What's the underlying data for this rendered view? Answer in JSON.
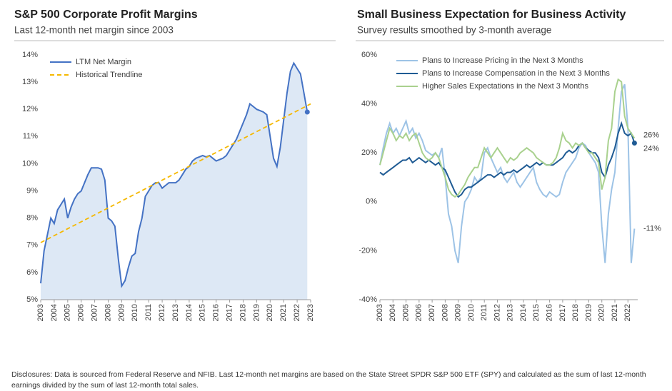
{
  "chart_data": [
    {
      "type": "line",
      "title": "S&P 500 Corporate Profit Margins",
      "subtitle": "Last 12-month net margin since 2003",
      "xlim": [
        2003,
        2023
      ],
      "xticks": [
        2003,
        2004,
        2005,
        2006,
        2007,
        2008,
        2009,
        2010,
        2011,
        2012,
        2013,
        2014,
        2015,
        2016,
        2017,
        2018,
        2019,
        2020,
        2021,
        2022,
        2023
      ],
      "ylim": [
        5,
        14
      ],
      "yticks": [
        {
          "value": 5,
          "label": "5%"
        },
        {
          "value": 6,
          "label": "6%"
        },
        {
          "value": 7,
          "label": "7%"
        },
        {
          "value": 8,
          "label": "8%"
        },
        {
          "value": 9,
          "label": "9%"
        },
        {
          "value": 10,
          "label": "10%"
        },
        {
          "value": 11,
          "label": "11%"
        },
        {
          "value": 12,
          "label": "12%"
        },
        {
          "value": 13,
          "label": "13%"
        },
        {
          "value": 14,
          "label": "14%"
        }
      ],
      "grid": false,
      "legend": "upper left",
      "series": [
        {
          "name": "LTM Net Margin",
          "color": "#4472c4",
          "area_color": "#dde8f5",
          "end_dot": true,
          "x": [
            2003,
            2003.25,
            2003.5,
            2003.75,
            2004,
            2004.25,
            2004.5,
            2004.75,
            2005,
            2005.25,
            2005.5,
            2005.75,
            2006,
            2006.25,
            2006.5,
            2006.75,
            2007,
            2007.25,
            2007.5,
            2007.75,
            2008,
            2008.25,
            2008.5,
            2008.75,
            2009,
            2009.25,
            2009.5,
            2009.75,
            2010,
            2010.25,
            2010.5,
            2010.75,
            2011,
            2011.25,
            2011.5,
            2011.75,
            2012,
            2012.25,
            2012.5,
            2012.75,
            2013,
            2013.25,
            2013.5,
            2013.75,
            2014,
            2014.25,
            2014.5,
            2014.75,
            2015,
            2015.25,
            2015.5,
            2015.75,
            2016,
            2016.25,
            2016.5,
            2016.75,
            2017,
            2017.25,
            2017.5,
            2017.75,
            2018,
            2018.25,
            2018.5,
            2018.75,
            2019,
            2019.25,
            2019.5,
            2019.75,
            2020,
            2020.25,
            2020.5,
            2020.75,
            2021,
            2021.25,
            2021.5,
            2021.75,
            2022,
            2022.25,
            2022.5,
            2022.75
          ],
          "values": [
            5.6,
            6.8,
            7.4,
            8.0,
            7.8,
            8.3,
            8.5,
            8.7,
            8.0,
            8.4,
            8.7,
            8.9,
            9.0,
            9.3,
            9.6,
            9.85,
            9.85,
            9.85,
            9.8,
            9.4,
            8.0,
            7.9,
            7.7,
            6.5,
            5.5,
            5.7,
            6.2,
            6.6,
            6.7,
            7.5,
            8.0,
            8.8,
            9.0,
            9.2,
            9.3,
            9.3,
            9.1,
            9.2,
            9.3,
            9.3,
            9.3,
            9.4,
            9.6,
            9.8,
            9.9,
            10.1,
            10.2,
            10.25,
            10.3,
            10.25,
            10.3,
            10.2,
            10.1,
            10.15,
            10.2,
            10.3,
            10.5,
            10.7,
            10.9,
            11.2,
            11.5,
            11.8,
            12.2,
            12.1,
            12.0,
            11.95,
            11.9,
            11.8,
            11.0,
            10.2,
            9.9,
            10.6,
            11.6,
            12.6,
            13.4,
            13.7,
            13.5,
            13.3,
            12.6,
            11.9
          ]
        },
        {
          "name": "Historical Trendline",
          "color": "#f5b800",
          "dashed": true,
          "x": [
            2003,
            2023
          ],
          "values": [
            7.1,
            12.2
          ]
        }
      ]
    },
    {
      "type": "line",
      "title": "Small Business Expectation for Business Activity",
      "subtitle": "Survey results smoothed by 3-month average",
      "xlim": [
        2003,
        2022.75
      ],
      "xticks": [
        2003,
        2004,
        2005,
        2006,
        2007,
        2008,
        2009,
        2010,
        2011,
        2012,
        2013,
        2014,
        2015,
        2016,
        2017,
        2018,
        2019,
        2020,
        2021,
        2022
      ],
      "ylim": [
        -40,
        60
      ],
      "yticks": [
        {
          "value": -40,
          "label": "-40%"
        },
        {
          "value": -20,
          "label": "-20%"
        },
        {
          "value": 0,
          "label": "0%"
        },
        {
          "value": 20,
          "label": "20%"
        },
        {
          "value": 40,
          "label": "40%"
        },
        {
          "value": 60,
          "label": "60%"
        }
      ],
      "grid": false,
      "legend": "upper left",
      "series": [
        {
          "name": "Plans to Increase Pricing in the Next 3 Months",
          "color": "#9dc3e6",
          "x": [
            2003,
            2003.25,
            2003.5,
            2003.75,
            2004,
            2004.25,
            2004.5,
            2004.75,
            2005,
            2005.25,
            2005.5,
            2005.75,
            2006,
            2006.25,
            2006.5,
            2006.75,
            2007,
            2007.25,
            2007.5,
            2007.75,
            2008,
            2008.25,
            2008.5,
            2008.75,
            2009,
            2009.25,
            2009.5,
            2009.75,
            2010,
            2010.25,
            2010.5,
            2010.75,
            2011,
            2011.25,
            2011.5,
            2011.75,
            2012,
            2012.25,
            2012.5,
            2012.75,
            2013,
            2013.25,
            2013.5,
            2013.75,
            2014,
            2014.25,
            2014.5,
            2014.75,
            2015,
            2015.25,
            2015.5,
            2015.75,
            2016,
            2016.25,
            2016.5,
            2016.75,
            2017,
            2017.25,
            2017.5,
            2017.75,
            2018,
            2018.25,
            2018.5,
            2018.75,
            2019,
            2019.25,
            2019.5,
            2019.75,
            2020,
            2020.25,
            2020.5,
            2020.75,
            2021,
            2021.25,
            2021.5,
            2021.75,
            2022,
            2022.25,
            2022.5
          ],
          "values": [
            15,
            22,
            28,
            32,
            28,
            30,
            27,
            30,
            33,
            28,
            30,
            26,
            28,
            25,
            21,
            20,
            19,
            20,
            18,
            22,
            10,
            -5,
            -10,
            -20,
            -25,
            -10,
            0,
            2,
            5,
            10,
            8,
            10,
            20,
            22,
            18,
            15,
            12,
            14,
            10,
            8,
            10,
            12,
            8,
            6,
            8,
            10,
            12,
            14,
            8,
            5,
            3,
            2,
            4,
            3,
            2,
            3,
            8,
            12,
            14,
            16,
            18,
            22,
            24,
            23,
            20,
            18,
            16,
            12,
            -10,
            -25,
            -5,
            5,
            12,
            30,
            45,
            48,
            30,
            -25,
            -11
          ]
        },
        {
          "name": "Plans to Increase Compensation in the Next 3 Months",
          "color": "#1f5b94",
          "end_dot": true,
          "x": [
            2003,
            2003.25,
            2003.5,
            2003.75,
            2004,
            2004.25,
            2004.5,
            2004.75,
            2005,
            2005.25,
            2005.5,
            2005.75,
            2006,
            2006.25,
            2006.5,
            2006.75,
            2007,
            2007.25,
            2007.5,
            2007.75,
            2008,
            2008.25,
            2008.5,
            2008.75,
            2009,
            2009.25,
            2009.5,
            2009.75,
            2010,
            2010.25,
            2010.5,
            2010.75,
            2011,
            2011.25,
            2011.5,
            2011.75,
            2012,
            2012.25,
            2012.5,
            2012.75,
            2013,
            2013.25,
            2013.5,
            2013.75,
            2014,
            2014.25,
            2014.5,
            2014.75,
            2015,
            2015.25,
            2015.5,
            2015.75,
            2016,
            2016.25,
            2016.5,
            2016.75,
            2017,
            2017.25,
            2017.5,
            2017.75,
            2018,
            2018.25,
            2018.5,
            2018.75,
            2019,
            2019.25,
            2019.5,
            2019.75,
            2020,
            2020.25,
            2020.5,
            2020.75,
            2021,
            2021.25,
            2021.5,
            2021.75,
            2022,
            2022.25,
            2022.5
          ],
          "values": [
            12,
            11,
            12,
            13,
            14,
            15,
            16,
            17,
            17,
            18,
            16,
            17,
            18,
            17,
            16,
            17,
            16,
            15,
            16,
            14,
            13,
            10,
            7,
            4,
            2,
            3,
            5,
            6,
            6,
            7,
            8,
            9,
            10,
            11,
            11,
            10,
            11,
            12,
            11,
            12,
            12,
            13,
            12,
            13,
            14,
            15,
            14,
            15,
            16,
            15,
            16,
            15,
            15,
            15,
            16,
            17,
            18,
            20,
            21,
            20,
            21,
            23,
            24,
            22,
            21,
            20,
            20,
            18,
            12,
            10,
            15,
            18,
            22,
            28,
            32,
            28,
            27,
            28,
            24
          ]
        },
        {
          "name": "Higher Sales Expectations in the Next 3 Months",
          "color": "#a9d18e",
          "x": [
            2003,
            2003.25,
            2003.5,
            2003.75,
            2004,
            2004.25,
            2004.5,
            2004.75,
            2005,
            2005.25,
            2005.5,
            2005.75,
            2006,
            2006.25,
            2006.5,
            2006.75,
            2007,
            2007.25,
            2007.5,
            2007.75,
            2008,
            2008.25,
            2008.5,
            2008.75,
            2009,
            2009.25,
            2009.5,
            2009.75,
            2010,
            2010.25,
            2010.5,
            2010.75,
            2011,
            2011.25,
            2011.5,
            2011.75,
            2012,
            2012.25,
            2012.5,
            2012.75,
            2013,
            2013.25,
            2013.5,
            2013.75,
            2014,
            2014.25,
            2014.5,
            2014.75,
            2015,
            2015.25,
            2015.5,
            2015.75,
            2016,
            2016.25,
            2016.5,
            2016.75,
            2017,
            2017.25,
            2017.5,
            2017.75,
            2018,
            2018.25,
            2018.5,
            2018.75,
            2019,
            2019.25,
            2019.5,
            2019.75,
            2020,
            2020.25,
            2020.5,
            2020.75,
            2021,
            2021.25,
            2021.5,
            2021.75,
            2022,
            2022.25,
            2022.5
          ],
          "values": [
            15,
            20,
            25,
            30,
            28,
            25,
            27,
            26,
            28,
            25,
            27,
            28,
            24,
            20,
            18,
            17,
            18,
            20,
            18,
            14,
            10,
            5,
            3,
            2,
            3,
            5,
            7,
            10,
            12,
            14,
            14,
            18,
            22,
            20,
            18,
            20,
            22,
            20,
            18,
            16,
            18,
            17,
            18,
            20,
            21,
            22,
            21,
            20,
            18,
            17,
            16,
            15,
            15,
            16,
            18,
            22,
            28,
            25,
            24,
            22,
            24,
            23,
            24,
            22,
            20,
            20,
            18,
            16,
            5,
            10,
            25,
            30,
            45,
            50,
            49,
            35,
            30,
            28,
            26
          ]
        }
      ],
      "annotations": [
        {
          "text": "26%",
          "value": 26
        },
        {
          "text": "24%",
          "value": 24
        },
        {
          "text": "-11%",
          "value": -11
        }
      ]
    }
  ],
  "disclosure": "Disclosures: Data is sourced from Federal Reserve and NFIB. Last 12-month net margins are based on the State Street SPDR S&P 500 ETF (SPY) and calculated as the sum of last 12-month earnings divided by the sum of last 12-month total sales."
}
